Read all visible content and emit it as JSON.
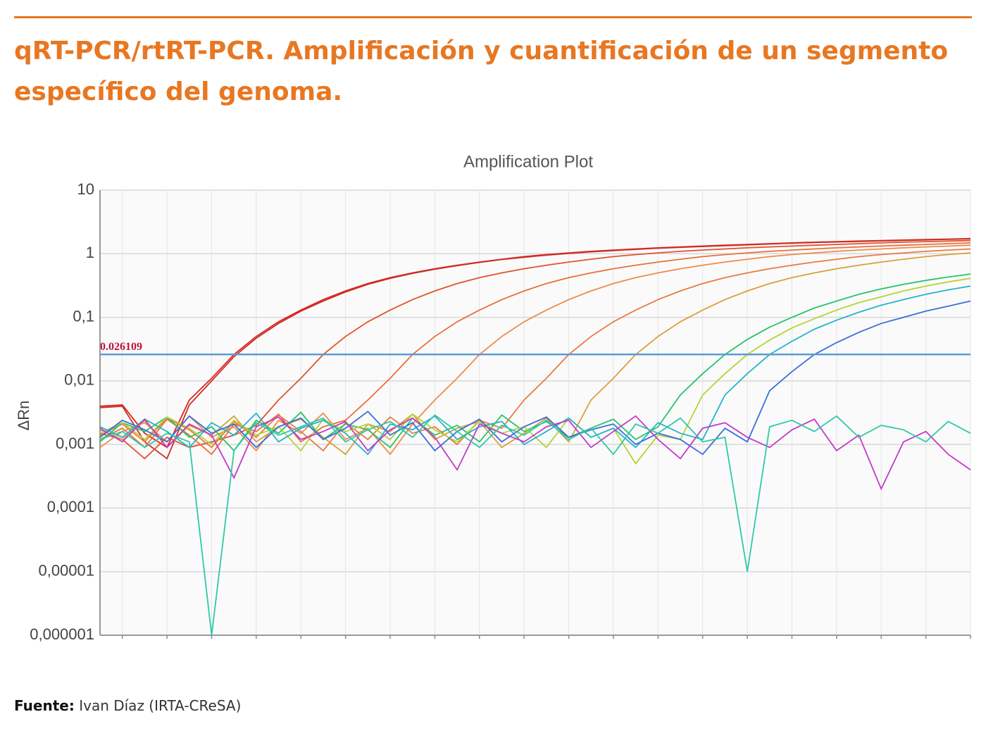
{
  "header": {
    "title": "qRT-PCR/rtRT-PCR. Amplificación y cuantificación de un segmento específico del genoma."
  },
  "source": {
    "label": "Fuente:",
    "text": "Ivan Díaz (IRTA-CReSA)"
  },
  "chart_data": {
    "type": "line",
    "title": "Amplification Plot",
    "y_label": "ΔRn",
    "log_y": true,
    "grid": true,
    "x": [
      1,
      2,
      3,
      4,
      5,
      6,
      7,
      8,
      9,
      10,
      11,
      12,
      13,
      14,
      15,
      16,
      17,
      18,
      19,
      20,
      21,
      22,
      23,
      24,
      25,
      26,
      27,
      28,
      29,
      30,
      31,
      32,
      33,
      34,
      35,
      36,
      37,
      38,
      39,
      40
    ],
    "xlim": [
      1,
      40
    ],
    "xticks": [
      2,
      4,
      6,
      8,
      10,
      12,
      14,
      16,
      18,
      20,
      22,
      24,
      26,
      28,
      30,
      32,
      34,
      36,
      38,
      40
    ],
    "ylim": [
      1e-06,
      10
    ],
    "yticks": [
      {
        "value": 1e-06,
        "label": "0,000001"
      },
      {
        "value": 1e-05,
        "label": "0,00001"
      },
      {
        "value": 0.0001,
        "label": "0,0001"
      },
      {
        "value": 0.001,
        "label": "0,001"
      },
      {
        "value": 0.01,
        "label": "0,01"
      },
      {
        "value": 0.1,
        "label": "0,1"
      },
      1,
      10
    ],
    "threshold": {
      "value": 0.026109,
      "label": "0.026109",
      "color": "#5b9bd5"
    },
    "series": [
      {
        "color": "#e0201b",
        "values": [
          0.004,
          0.0042,
          0.0015,
          0.0009,
          0.005,
          0.011,
          0.026,
          0.05,
          0.085,
          0.13,
          0.19,
          0.26,
          0.34,
          0.42,
          0.5,
          0.58,
          0.66,
          0.74,
          0.82,
          0.9,
          0.97,
          1.03,
          1.09,
          1.14,
          1.19,
          1.24,
          1.28,
          1.32,
          1.36,
          1.4,
          1.44,
          1.48,
          1.52,
          1.55,
          1.58,
          1.61,
          1.64,
          1.67,
          1.7,
          1.73
        ]
      },
      {
        "color": "#c9302a",
        "values": [
          0.0038,
          0.004,
          0.0011,
          0.0006,
          0.0042,
          0.01,
          0.024,
          0.047,
          0.08,
          0.125,
          0.18,
          0.25,
          0.33,
          0.41,
          0.49,
          0.57,
          0.65,
          0.73,
          0.81,
          0.88,
          0.95,
          1.01,
          1.07,
          1.12,
          1.17,
          1.22,
          1.26,
          1.3,
          1.34,
          1.38,
          1.42,
          1.46,
          1.5,
          1.53,
          1.56,
          1.59,
          1.62,
          1.65,
          1.68,
          1.71
        ]
      },
      {
        "color": "#e0532a",
        "values": [
          0.0015,
          0.0012,
          0.0006,
          0.0013,
          0.0009,
          0.0011,
          0.0014,
          0.002,
          0.005,
          0.011,
          0.026,
          0.05,
          0.085,
          0.13,
          0.19,
          0.26,
          0.34,
          0.42,
          0.5,
          0.58,
          0.66,
          0.74,
          0.82,
          0.9,
          0.97,
          1.03,
          1.09,
          1.14,
          1.19,
          1.24,
          1.28,
          1.32,
          1.36,
          1.4,
          1.44,
          1.48,
          1.52,
          1.55,
          1.58,
          1.61
        ]
      },
      {
        "color": "#e8703a",
        "values": [
          0.0012,
          0.0018,
          0.0009,
          0.0025,
          0.0014,
          0.0007,
          0.0021,
          0.0016,
          0.003,
          0.0011,
          0.0019,
          0.0024,
          0.005,
          0.011,
          0.026,
          0.05,
          0.085,
          0.13,
          0.19,
          0.26,
          0.34,
          0.42,
          0.5,
          0.58,
          0.66,
          0.74,
          0.82,
          0.9,
          0.97,
          1.03,
          1.09,
          1.14,
          1.19,
          1.24,
          1.28,
          1.32,
          1.36,
          1.4,
          1.44,
          1.48
        ]
      },
      {
        "color": "#f08a4b",
        "values": [
          0.0009,
          0.0016,
          0.0022,
          0.0011,
          0.0028,
          0.0013,
          0.0019,
          0.0008,
          0.0024,
          0.0015,
          0.0031,
          0.0012,
          0.0018,
          0.0007,
          0.0021,
          0.005,
          0.011,
          0.026,
          0.05,
          0.085,
          0.13,
          0.19,
          0.26,
          0.34,
          0.42,
          0.5,
          0.58,
          0.66,
          0.74,
          0.82,
          0.9,
          0.97,
          1.03,
          1.09,
          1.14,
          1.19,
          1.24,
          1.28,
          1.32,
          1.36
        ]
      },
      {
        "color": "#e97a45",
        "values": [
          0.0014,
          0.0021,
          0.0011,
          0.0026,
          0.0017,
          0.0009,
          0.0023,
          0.0013,
          0.0029,
          0.0016,
          0.0008,
          0.0022,
          0.0012,
          0.0027,
          0.0015,
          0.0019,
          0.001,
          0.0024,
          0.0018,
          0.005,
          0.011,
          0.026,
          0.05,
          0.085,
          0.13,
          0.19,
          0.26,
          0.34,
          0.42,
          0.5,
          0.58,
          0.66,
          0.74,
          0.82,
          0.9,
          0.97,
          1.03,
          1.09,
          1.14,
          1.19
        ]
      },
      {
        "color": "#d9a03b",
        "values": [
          0.0017,
          0.0012,
          0.0024,
          0.0009,
          0.002,
          0.0014,
          0.0028,
          0.0011,
          0.0019,
          0.0025,
          0.0013,
          0.0007,
          0.0021,
          0.0016,
          0.003,
          0.0012,
          0.0018,
          0.0023,
          0.0009,
          0.0015,
          0.0026,
          0.0011,
          0.005,
          0.011,
          0.026,
          0.05,
          0.085,
          0.13,
          0.19,
          0.26,
          0.34,
          0.42,
          0.5,
          0.58,
          0.66,
          0.74,
          0.82,
          0.9,
          0.97,
          1.03
        ]
      },
      {
        "color": "#27c46a",
        "values": [
          0.0011,
          0.0022,
          0.0016,
          0.0027,
          0.0013,
          0.0019,
          0.0008,
          0.0024,
          0.0015,
          0.0032,
          0.0012,
          0.0021,
          0.0017,
          0.0009,
          0.0026,
          0.0014,
          0.002,
          0.0011,
          0.0029,
          0.0016,
          0.0023,
          0.0013,
          0.0018,
          0.0025,
          0.0012,
          0.0019,
          0.006,
          0.013,
          0.026,
          0.045,
          0.07,
          0.1,
          0.14,
          0.18,
          0.23,
          0.28,
          0.33,
          0.38,
          0.43,
          0.48
        ]
      },
      {
        "color": "#b6d334",
        "values": [
          0.0015,
          0.0022,
          0.0012,
          0.0027,
          0.0018,
          0.001,
          0.0024,
          0.0014,
          0.0019,
          0.0008,
          0.0025,
          0.0016,
          0.0021,
          0.0012,
          0.003,
          0.0017,
          0.0011,
          0.0023,
          0.0015,
          0.0019,
          0.0009,
          0.0026,
          0.0013,
          0.0018,
          0.0005,
          0.0014,
          0.0012,
          0.006,
          0.013,
          0.026,
          0.044,
          0.068,
          0.095,
          0.13,
          0.17,
          0.21,
          0.26,
          0.31,
          0.36,
          0.41
        ]
      },
      {
        "color": "#22b5c9",
        "values": [
          0.0019,
          0.0013,
          0.0025,
          0.0016,
          0.0009,
          0.0022,
          0.0014,
          0.0031,
          0.0011,
          0.0018,
          0.0024,
          0.0015,
          0.0007,
          0.0021,
          0.0017,
          0.0028,
          0.0012,
          0.0019,
          0.0023,
          0.001,
          0.0016,
          0.0026,
          0.0013,
          0.0018,
          0.0009,
          0.0022,
          0.0015,
          0.0012,
          0.006,
          0.013,
          0.026,
          0.042,
          0.065,
          0.09,
          0.12,
          0.155,
          0.19,
          0.23,
          0.27,
          0.31
        ]
      },
      {
        "color": "#3a6fd8",
        "values": [
          0.0013,
          0.0024,
          0.0017,
          0.0011,
          0.0028,
          0.0015,
          0.0021,
          0.0009,
          0.0019,
          0.0026,
          0.0012,
          0.0018,
          0.0033,
          0.0014,
          0.0022,
          0.0008,
          0.0016,
          0.0025,
          0.0011,
          0.0019,
          0.0027,
          0.0013,
          0.0017,
          0.0021,
          0.001,
          0.0015,
          0.0012,
          0.0007,
          0.0018,
          0.0011,
          0.007,
          0.014,
          0.026,
          0.04,
          0.058,
          0.08,
          0.1,
          0.125,
          0.15,
          0.18
        ]
      },
      {
        "color": "#c23ac8",
        "values": [
          0.0018,
          0.0011,
          0.0025,
          0.0009,
          0.0021,
          0.0014,
          0.0003,
          0.0019,
          0.0027,
          0.0012,
          0.0016,
          0.0023,
          0.0008,
          0.0017,
          0.0026,
          0.0013,
          0.0004,
          0.0021,
          0.0015,
          0.0011,
          0.0019,
          0.0024,
          0.0009,
          0.0016,
          0.0028,
          0.0012,
          0.0006,
          0.0018,
          0.0022,
          0.0013,
          0.0009,
          0.0017,
          0.0025,
          0.0008,
          0.0014,
          0.0002,
          0.0011,
          0.0016,
          0.0007,
          0.0004
        ]
      },
      {
        "color": "#2fc9a8",
        "values": [
          0.0012,
          0.0016,
          0.0009,
          0.0015,
          0.0011,
          1e-06,
          0.0008,
          0.0022,
          0.0014,
          0.0019,
          0.0026,
          0.0011,
          0.0017,
          0.0023,
          0.0013,
          0.0029,
          0.0016,
          0.0009,
          0.002,
          0.0014,
          0.0024,
          0.0012,
          0.0018,
          0.0007,
          0.0021,
          0.0015,
          0.0026,
          0.0011,
          0.0013,
          1e-05,
          0.0019,
          0.0024,
          0.0016,
          0.0028,
          0.0013,
          0.002,
          0.0017,
          0.0011,
          0.0023,
          0.0015
        ]
      }
    ]
  }
}
